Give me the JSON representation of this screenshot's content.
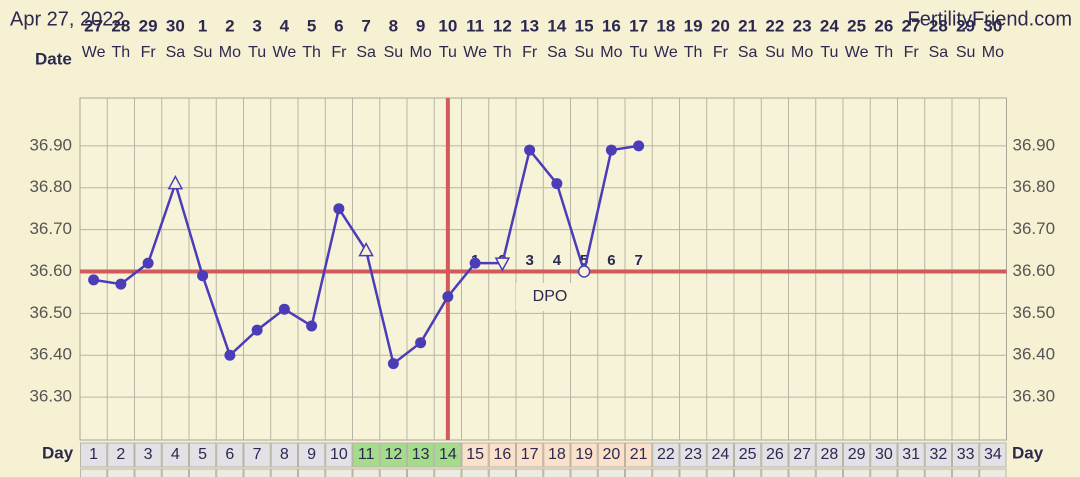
{
  "header": {
    "date": "Apr 27, 2022",
    "site": "FertilityFriend.com"
  },
  "chart_data": {
    "type": "line",
    "date_label": "Date",
    "day_label": "Day",
    "dates": [
      27,
      28,
      29,
      30,
      1,
      2,
      3,
      4,
      5,
      6,
      7,
      8,
      9,
      10,
      11,
      12,
      13,
      14,
      15,
      16,
      17,
      18,
      19,
      20,
      21,
      22,
      23,
      24,
      25,
      26,
      27,
      28,
      29,
      30
    ],
    "weekdays": [
      "We",
      "Th",
      "Fr",
      "Sa",
      "Su",
      "Mo",
      "Tu",
      "We",
      "Th",
      "Fr",
      "Sa",
      "Su",
      "Mo",
      "Tu",
      "We",
      "Th",
      "Fr",
      "Sa",
      "Su",
      "Mo",
      "Tu",
      "We",
      "Th",
      "Fr",
      "Sa",
      "Su",
      "Mo",
      "Tu",
      "We",
      "Th",
      "Fr",
      "Sa",
      "Su",
      "Mo"
    ],
    "categories": [
      1,
      2,
      3,
      4,
      5,
      6,
      7,
      8,
      9,
      10,
      11,
      12,
      13,
      14,
      15,
      16,
      17,
      18,
      19,
      20,
      21,
      22,
      23,
      24,
      25,
      26,
      27,
      28,
      29,
      30,
      31,
      32,
      33,
      34
    ],
    "values": [
      36.58,
      36.57,
      36.62,
      36.81,
      36.59,
      36.4,
      36.46,
      36.51,
      36.47,
      36.75,
      36.65,
      36.38,
      36.43,
      36.54,
      36.62,
      36.62,
      36.89,
      36.81,
      36.6,
      36.89,
      36.9,
      null,
      null,
      null,
      null,
      null,
      null,
      null,
      null,
      null,
      null,
      null,
      null,
      null
    ],
    "markers": [
      "dot",
      "dot",
      "dot",
      "triangle",
      "dot",
      "dot",
      "dot",
      "dot",
      "dot",
      "dot",
      "triangle",
      "dot",
      "dot",
      "dot",
      "dot",
      "triangle-down",
      "dot",
      "dot",
      "circle-open",
      "dot",
      "dot",
      null,
      null,
      null,
      null,
      null,
      null,
      null,
      null,
      null,
      null,
      null,
      null,
      null
    ],
    "dpo": [
      null,
      null,
      null,
      null,
      null,
      null,
      null,
      null,
      null,
      null,
      null,
      null,
      null,
      null,
      1,
      2,
      3,
      4,
      5,
      6,
      7,
      null,
      null,
      null,
      null,
      null,
      null,
      null,
      null,
      null,
      null,
      null,
      null,
      null
    ],
    "dpo_label": "DPO",
    "color": "#4b3db8",
    "coverline": 36.6,
    "ovulation_day": 14,
    "reference_color": "#d25a5a",
    "day_colors": [
      "#e4e1e6",
      "#e4e1e6",
      "#e4e1e6",
      "#e4e1e6",
      "#e4e1e6",
      "#e4e1e6",
      "#e4e1e6",
      "#e4e1e6",
      "#e4e1e6",
      "#e4e1e6",
      "#a4dc8c",
      "#a4dc8c",
      "#a4dc8c",
      "#a4dc8c",
      "#fbe1c9",
      "#fbe1c9",
      "#fbe1c9",
      "#fbe1c9",
      "#fbe1c9",
      "#fbe1c9",
      "#fbe1c9",
      "#e4e1e6",
      "#e4e1e6",
      "#e4e1e6",
      "#e4e1e6",
      "#e4e1e6",
      "#e4e1e6",
      "#e4e1e6",
      "#e4e1e6",
      "#e4e1e6",
      "#e4e1e6",
      "#e4e1e6",
      "#e4e1e6",
      "#e4e1e6"
    ],
    "ylim": [
      36.2,
      37.0
    ],
    "yticks": [
      {
        "value": 36.3,
        "label": "36.30"
      },
      {
        "value": 36.4,
        "label": "36.40"
      },
      {
        "value": 36.5,
        "label": "36.50"
      },
      {
        "value": 36.6,
        "label": "36.60"
      },
      {
        "value": 36.7,
        "label": "36.70"
      },
      {
        "value": 36.8,
        "label": "36.80"
      },
      {
        "value": 36.9,
        "label": "36.90"
      }
    ],
    "grid": true
  }
}
